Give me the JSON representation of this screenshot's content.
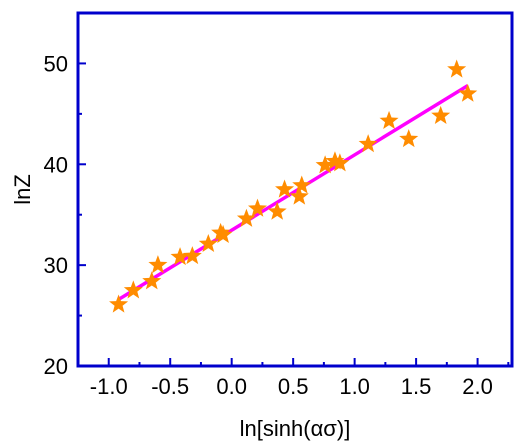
{
  "chart_data": {
    "type": "scatter",
    "title": "",
    "xlabel": "ln[sinh(ασ)]",
    "ylabel": "lnZ",
    "xlim": [
      -1.25,
      2.28
    ],
    "ylim": [
      20,
      55
    ],
    "xticks": [
      -1.0,
      -0.5,
      0.0,
      0.5,
      1.0,
      1.5,
      2.0
    ],
    "xtick_labels": [
      "-1.0",
      "-0.5",
      "0.0",
      "0.5",
      "1.0",
      "1.5",
      "2.0"
    ],
    "yticks": [
      20,
      30,
      40,
      50
    ],
    "ytick_labels": [
      "20",
      "30",
      "40",
      "50"
    ],
    "grid": false,
    "legend": "none",
    "colors": {
      "points": "#ff8c00",
      "fit_line": "#ff00ff",
      "axes": "#0000cc"
    },
    "series": [
      {
        "type": "scatter",
        "marker": "star-icon",
        "x": [
          -0.92,
          -0.8,
          -0.65,
          -0.6,
          -0.42,
          -0.32,
          -0.19,
          -0.09,
          -0.07,
          0.12,
          0.21,
          0.37,
          0.43,
          0.55,
          0.57,
          0.76,
          0.84,
          0.88,
          1.11,
          1.28,
          1.44,
          1.7,
          1.83,
          1.92
        ],
        "y": [
          26.1,
          27.5,
          28.4,
          30.0,
          30.8,
          30.9,
          32.1,
          33.2,
          33.0,
          34.6,
          35.6,
          35.3,
          37.5,
          36.8,
          37.9,
          39.9,
          40.3,
          40.1,
          42.0,
          44.3,
          42.5,
          44.8,
          49.4,
          47.0
        ]
      },
      {
        "type": "line",
        "x": [
          -0.92,
          1.92
        ],
        "y": [
          26.6,
          47.8
        ]
      }
    ]
  }
}
